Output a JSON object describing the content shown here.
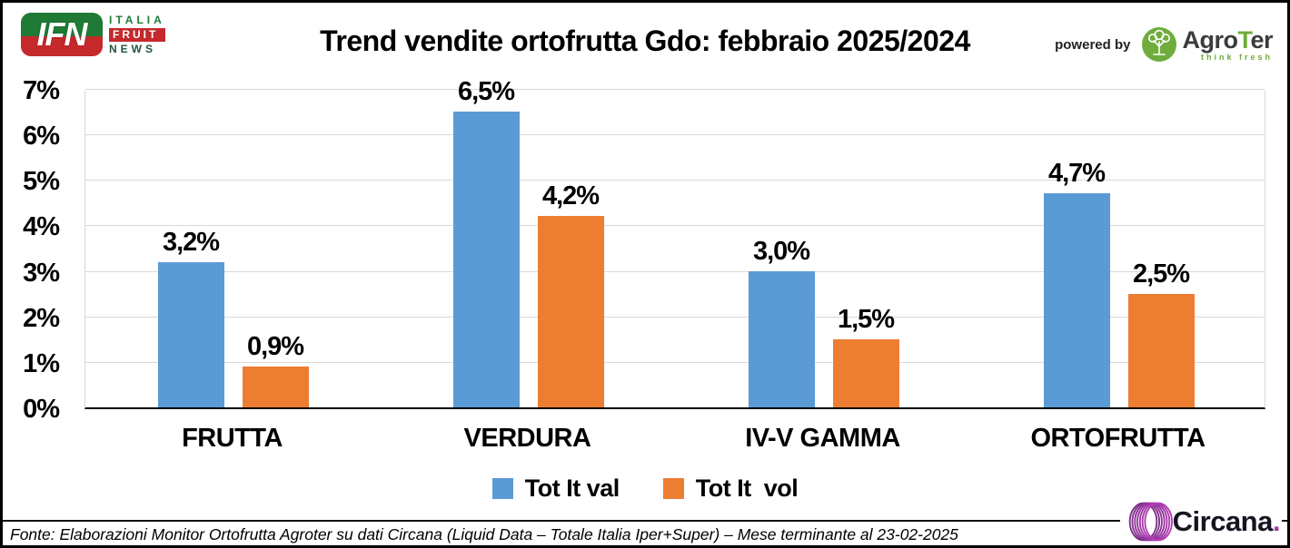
{
  "header": {
    "title": "Trend vendite ortofrutta Gdo: febbraio 2025/2024",
    "ifn": {
      "acronym": "IFN",
      "lines": {
        "0": "ITALIA",
        "1": "FRUIT",
        "2": "NEWS"
      }
    },
    "powered_by": "powered by",
    "agroter": {
      "agro": "Agro",
      "t": "T",
      "er": "er",
      "tagline": "think fresh"
    }
  },
  "chart_data": {
    "type": "bar",
    "title": "Trend vendite ortofrutta Gdo: febbraio 2025/2024",
    "categories": [
      "FRUTTA",
      "VERDURA",
      "IV-V GAMMA",
      "ORTOFRUTTA"
    ],
    "series": [
      {
        "name": "Tot It val",
        "color": "#5B9BD5",
        "values": [
          3.2,
          6.5,
          3.0,
          4.7
        ],
        "labels": [
          "3,2%",
          "6,5%",
          "3,0%",
          "4,7%"
        ]
      },
      {
        "name": "Tot It  vol",
        "color": "#ED7D31",
        "values": [
          0.9,
          4.2,
          1.5,
          2.5
        ],
        "labels": [
          "0,9%",
          "4,2%",
          "1,5%",
          "2,5%"
        ]
      }
    ],
    "y_axis": {
      "min": 0,
      "max": 7,
      "unit": "%",
      "ticks": [
        "7%",
        "6%",
        "5%",
        "4%",
        "3%",
        "2%",
        "1%",
        "0%"
      ]
    },
    "grid": true,
    "legend_position": "bottom"
  },
  "footer": {
    "source": "Fonte: Elaborazioni Monitor Ortofrutta Agroter su dati Circana (Liquid Data – Totale Italia Iper+Super) – Mese terminante al 23-02-2025",
    "circana_name": "Circana",
    "circana_dot": "."
  },
  "colors": {
    "series_val": "#5B9BD5",
    "series_vol": "#ED7D31",
    "gridline": "#D9D9D9",
    "axis": "#000000",
    "ifn_green": "#1E7A34",
    "ifn_red": "#C5292B",
    "agroter_green": "#6FAC3C",
    "circana_purple": "#A03AA0"
  }
}
